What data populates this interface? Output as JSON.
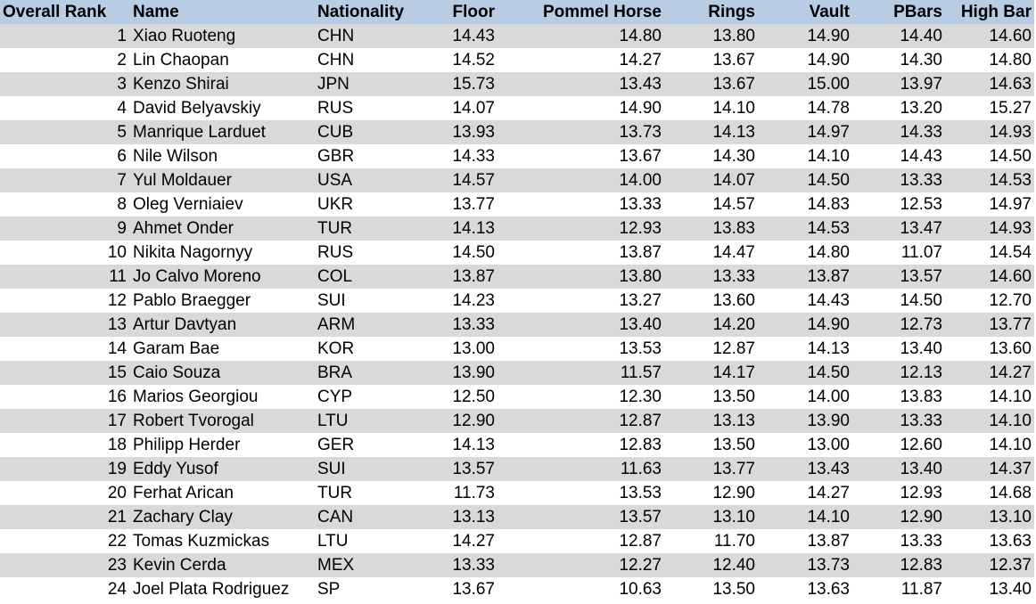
{
  "table": {
    "columns": [
      "Overall Rank",
      "Name",
      "Nationality",
      "Floor",
      "Pommel Horse",
      "Rings",
      "Vault",
      "PBars",
      "High Bar"
    ],
    "rows": [
      [
        "1",
        "Xiao Ruoteng",
        "CHN",
        "14.43",
        "14.80",
        "13.80",
        "14.90",
        "14.40",
        "14.60"
      ],
      [
        "2",
        "Lin Chaopan",
        "CHN",
        "14.52",
        "14.27",
        "13.67",
        "14.90",
        "14.30",
        "14.80"
      ],
      [
        "3",
        "Kenzo Shirai",
        "JPN",
        "15.73",
        "13.43",
        "13.67",
        "15.00",
        "13.97",
        "14.63"
      ],
      [
        "4",
        "David Belyavskiy",
        "RUS",
        "14.07",
        "14.90",
        "14.10",
        "14.78",
        "13.20",
        "15.27"
      ],
      [
        "5",
        "Manrique Larduet",
        "CUB",
        "13.93",
        "13.73",
        "14.13",
        "14.97",
        "14.33",
        "14.93"
      ],
      [
        "6",
        "Nile Wilson",
        "GBR",
        "14.33",
        "13.67",
        "14.30",
        "14.10",
        "14.43",
        "14.50"
      ],
      [
        "7",
        "Yul Moldauer",
        "USA",
        "14.57",
        "14.00",
        "14.07",
        "14.50",
        "13.33",
        "14.53"
      ],
      [
        "8",
        "Oleg Verniaiev",
        "UKR",
        "13.77",
        "13.33",
        "14.57",
        "14.83",
        "12.53",
        "14.97"
      ],
      [
        "9",
        "Ahmet Onder",
        "TUR",
        "14.13",
        "12.93",
        "13.83",
        "14.53",
        "13.47",
        "14.93"
      ],
      [
        "10",
        "Nikita Nagornyy",
        "RUS",
        "14.50",
        "13.87",
        "14.47",
        "14.80",
        "11.07",
        "14.54"
      ],
      [
        "11",
        "Jo Calvo Moreno",
        "COL",
        "13.87",
        "13.80",
        "13.33",
        "13.87",
        "13.57",
        "14.60"
      ],
      [
        "12",
        "Pablo Braegger",
        "SUI",
        "14.23",
        "13.27",
        "13.60",
        "14.43",
        "14.50",
        "12.70"
      ],
      [
        "13",
        "Artur Davtyan",
        "ARM",
        "13.33",
        "13.40",
        "14.20",
        "14.90",
        "12.73",
        "13.77"
      ],
      [
        "14",
        "Garam Bae",
        "KOR",
        "13.00",
        "13.53",
        "12.87",
        "14.13",
        "13.40",
        "13.60"
      ],
      [
        "15",
        "Caio Souza",
        "BRA",
        "13.90",
        "11.57",
        "14.17",
        "14.50",
        "12.13",
        "14.27"
      ],
      [
        "16",
        "Marios Georgiou",
        "CYP",
        "12.50",
        "12.30",
        "13.50",
        "14.00",
        "13.83",
        "14.10"
      ],
      [
        "17",
        "Robert Tvorogal",
        "LTU",
        "12.90",
        "12.87",
        "13.13",
        "13.90",
        "13.33",
        "14.10"
      ],
      [
        "18",
        "Philipp Herder",
        "GER",
        "14.13",
        "12.83",
        "13.50",
        "13.00",
        "12.60",
        "14.10"
      ],
      [
        "19",
        "Eddy Yusof",
        "SUI",
        "13.57",
        "11.63",
        "13.77",
        "13.43",
        "13.40",
        "14.37"
      ],
      [
        "20",
        "Ferhat Arican",
        "TUR",
        "11.73",
        "13.53",
        "12.90",
        "14.27",
        "12.93",
        "14.68"
      ],
      [
        "21",
        "Zachary Clay",
        "CAN",
        "13.13",
        "13.57",
        "13.10",
        "14.10",
        "12.90",
        "13.10"
      ],
      [
        "22",
        "Tomas Kuzmickas",
        "LTU",
        "14.27",
        "12.87",
        "11.70",
        "13.87",
        "13.33",
        "13.63"
      ],
      [
        "23",
        "Kevin Cerda",
        "MEX",
        "13.33",
        "12.27",
        "12.40",
        "13.73",
        "12.83",
        "12.37"
      ],
      [
        "24",
        "Joel Plata Rodriguez",
        "SP",
        "13.67",
        "10.63",
        "13.50",
        "13.63",
        "11.87",
        "13.40"
      ]
    ]
  }
}
